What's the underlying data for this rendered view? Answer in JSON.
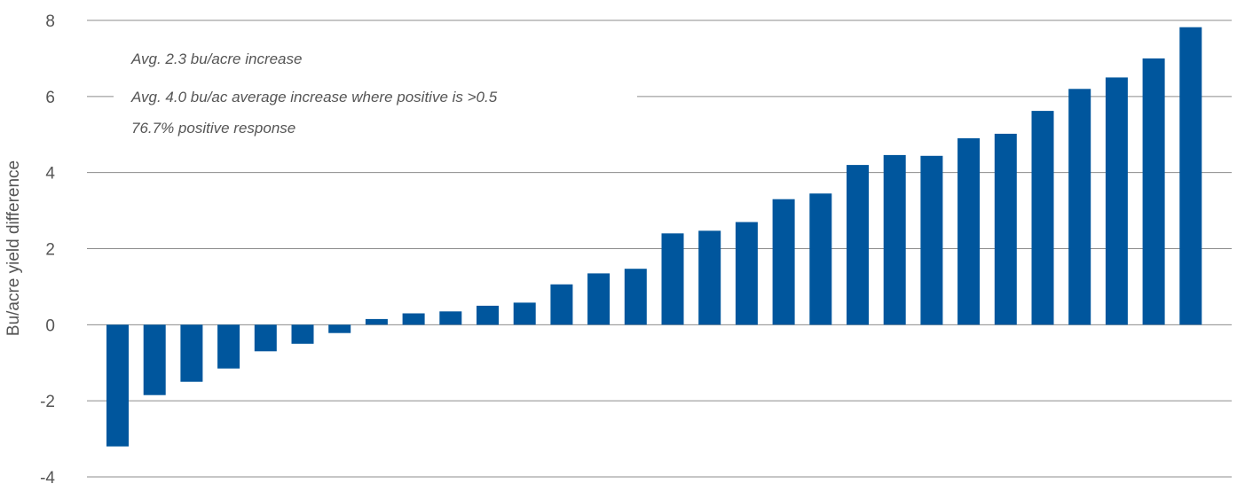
{
  "chart_data": {
    "type": "bar",
    "title": "",
    "xlabel": "",
    "ylabel": "Bu/acre yield difference",
    "ylim": [
      -4,
      8
    ],
    "yticks": [
      "-4",
      "-2",
      "0",
      "2",
      "4",
      "6",
      "8"
    ],
    "grid": true,
    "colors": {
      "bar": "#00569d",
      "grid": "#8c8c8c",
      "text": "#555555"
    },
    "values": [
      -3.2,
      -1.85,
      -1.5,
      -1.15,
      -0.7,
      -0.5,
      -0.22,
      0.15,
      0.3,
      0.35,
      0.5,
      0.58,
      1.06,
      1.35,
      1.47,
      2.4,
      2.47,
      2.7,
      3.3,
      3.45,
      4.2,
      4.46,
      4.44,
      4.9,
      5.02,
      5.62,
      6.2,
      6.5,
      7.0,
      7.82
    ],
    "annotations": [
      "Avg. 2.3 bu/acre increase",
      "Avg. 4.0 bu/ac average increase where positive is >0.5",
      "76.7% positive response"
    ]
  }
}
